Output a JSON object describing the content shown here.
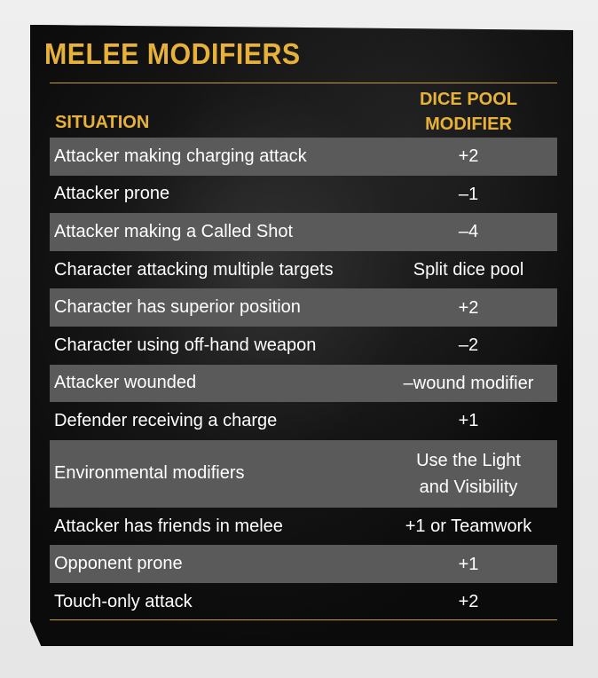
{
  "title": "MELEE MODIFIERS",
  "columns": {
    "situation": "SITUATION",
    "modifier": "DICE POOL\nMODIFIER"
  },
  "rows": [
    {
      "situation": "Attacker making charging attack",
      "modifier": "+2"
    },
    {
      "situation": "Attacker prone",
      "modifier": "–1"
    },
    {
      "situation": "Attacker making a Called Shot",
      "modifier": "–4"
    },
    {
      "situation": "Character attacking multiple targets",
      "modifier": "Split dice pool"
    },
    {
      "situation": "Character has superior position",
      "modifier": "+2"
    },
    {
      "situation": "Character using off-hand weapon",
      "modifier": "–2"
    },
    {
      "situation": "Attacker wounded",
      "modifier": "–wound modifier"
    },
    {
      "situation": "Defender receiving a charge",
      "modifier": "+1"
    },
    {
      "situation": "Environmental modifiers",
      "modifier": "Use the Light\nand Visibility"
    },
    {
      "situation": "Attacker has friends in melee",
      "modifier": "+1 or Teamwork"
    },
    {
      "situation": "Opponent prone",
      "modifier": "+1"
    },
    {
      "situation": "Touch-only attack",
      "modifier": "+2"
    }
  ],
  "colors": {
    "accent": "#e8b23a",
    "row_shade": "#5a5a5a",
    "background": "#0b0b0b"
  }
}
